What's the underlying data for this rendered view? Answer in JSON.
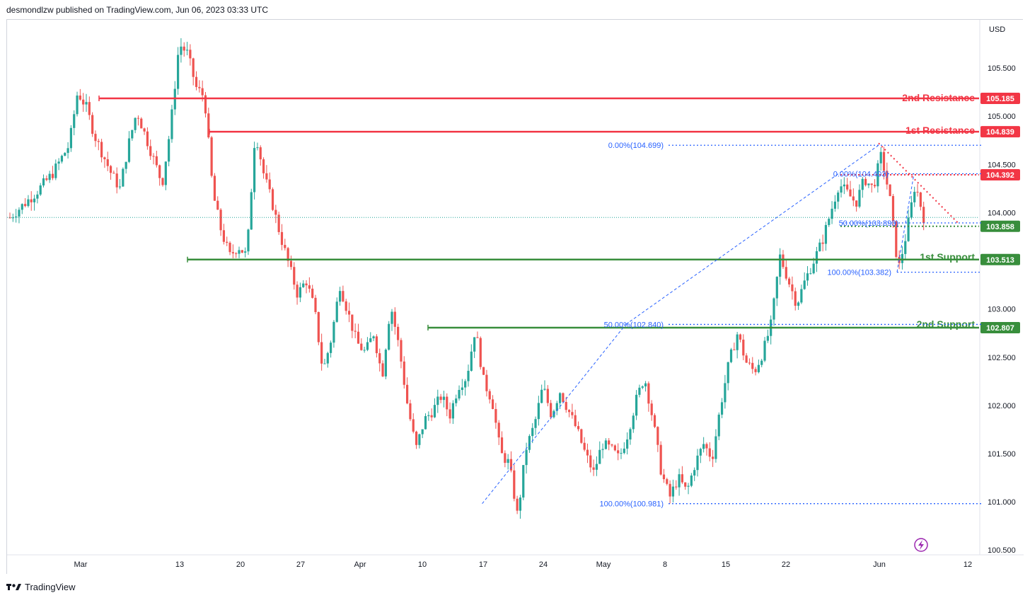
{
  "header": {
    "publisher_text": "desmondlzw published on TradingView.com, Jun 06, 2023 03:33 UTC"
  },
  "footer": {
    "brand": "TradingView"
  },
  "colors": {
    "up": "#26a69a",
    "down": "#ef5350",
    "resistance": "#f23645",
    "support": "#388e3c",
    "fib": "#2962ff",
    "price_line": "#26a69a"
  },
  "chart_data": {
    "type": "candlestick",
    "currency": "USD",
    "ylim": [
      100.45,
      106.0
    ],
    "y_ticks": [
      "100.500",
      "101.000",
      "101.500",
      "102.000",
      "102.500",
      "103.000",
      "103.500",
      "104.000",
      "104.500",
      "105.000",
      "105.500"
    ],
    "x_ticks": [
      "Mar",
      "13",
      "20",
      "27",
      "Apr",
      "10",
      "17",
      "24",
      "May",
      "8",
      "15",
      "22",
      "Jun",
      "12"
    ],
    "last_price": 103.95,
    "levels": [
      {
        "name": "2nd Resistance",
        "value": 105.185,
        "tag": "105.185",
        "kind": "resistance"
      },
      {
        "name": "1st Resistance",
        "value": 104.839,
        "tag": "104.839",
        "kind": "resistance"
      },
      {
        "name": "1st Support",
        "value": 103.513,
        "tag": "103.513",
        "kind": "support"
      },
      {
        "name": "2nd Support",
        "value": 102.807,
        "tag": "102.807",
        "kind": "support"
      }
    ],
    "marker_tags": [
      {
        "value": 104.392,
        "tag": "104.392",
        "kind": "resistance"
      },
      {
        "value": 103.858,
        "tag": "103.858",
        "kind": "support"
      }
    ],
    "fib_labels": [
      {
        "text": "0.00%(104.699)",
        "value": 104.699
      },
      {
        "text": "0.00%(104.403)",
        "value": 104.403
      },
      {
        "text": "50.00%(103.893)",
        "value": 103.893
      },
      {
        "text": "100.00%(103.382)",
        "value": 103.382
      },
      {
        "text": "50.00%(102.840)",
        "value": 102.84
      },
      {
        "text": "100.00%(100.981)",
        "value": 100.981
      }
    ],
    "path": [
      [
        0,
        103.95
      ],
      [
        3,
        104.2
      ],
      [
        5,
        104.4
      ],
      [
        7,
        104.7
      ],
      [
        8,
        105.25
      ],
      [
        9,
        105.1
      ],
      [
        10,
        104.8
      ],
      [
        11,
        104.6
      ],
      [
        12,
        104.4
      ],
      [
        13,
        104.25
      ],
      [
        14,
        104.7
      ],
      [
        15,
        105.05
      ],
      [
        16,
        104.8
      ],
      [
        17,
        104.55
      ],
      [
        18,
        104.3
      ],
      [
        19,
        104.9
      ],
      [
        20,
        105.75
      ],
      [
        21,
        105.65
      ],
      [
        22,
        105.3
      ],
      [
        23,
        105.2
      ],
      [
        24,
        104.2
      ],
      [
        25,
        103.8
      ],
      [
        26,
        103.55
      ],
      [
        27,
        103.65
      ],
      [
        28,
        103.55
      ],
      [
        29,
        104.85
      ],
      [
        30,
        104.4
      ],
      [
        31,
        104.1
      ],
      [
        32,
        103.75
      ],
      [
        33,
        103.45
      ],
      [
        34,
        103.15
      ],
      [
        35,
        103.3
      ],
      [
        36,
        103.0
      ],
      [
        37,
        102.35
      ],
      [
        38,
        102.7
      ],
      [
        39,
        103.25
      ],
      [
        40,
        102.95
      ],
      [
        41,
        102.65
      ],
      [
        42,
        102.55
      ],
      [
        43,
        102.75
      ],
      [
        44,
        102.3
      ],
      [
        45,
        103.05
      ],
      [
        46,
        102.6
      ],
      [
        47,
        102.0
      ],
      [
        48,
        101.55
      ],
      [
        49,
        101.85
      ],
      [
        50,
        101.95
      ],
      [
        51,
        102.1
      ],
      [
        52,
        101.9
      ],
      [
        53,
        102.2
      ],
      [
        54,
        102.3
      ],
      [
        55,
        102.8
      ],
      [
        56,
        102.25
      ],
      [
        57,
        102.05
      ],
      [
        58,
        101.5
      ],
      [
        59,
        101.4
      ],
      [
        60,
        100.85
      ],
      [
        61,
        101.55
      ],
      [
        62,
        101.8
      ],
      [
        63,
        102.2
      ],
      [
        64,
        101.9
      ],
      [
        65,
        102.15
      ],
      [
        66,
        101.95
      ],
      [
        67,
        101.75
      ],
      [
        68,
        101.5
      ],
      [
        69,
        101.3
      ],
      [
        70,
        101.6
      ],
      [
        71,
        101.55
      ],
      [
        72,
        101.45
      ],
      [
        73,
        101.7
      ],
      [
        74,
        102.05
      ],
      [
        75,
        102.3
      ],
      [
        76,
        101.85
      ],
      [
        77,
        101.3
      ],
      [
        78,
        101.05
      ],
      [
        79,
        101.25
      ],
      [
        80,
        101.1
      ],
      [
        81,
        101.4
      ],
      [
        82,
        101.6
      ],
      [
        83,
        101.45
      ],
      [
        84,
        102.0
      ],
      [
        85,
        102.45
      ],
      [
        86,
        102.75
      ],
      [
        87,
        102.45
      ],
      [
        88,
        102.35
      ],
      [
        89,
        102.55
      ],
      [
        90,
        102.85
      ],
      [
        91,
        103.55
      ],
      [
        92,
        103.3
      ],
      [
        93,
        103.05
      ],
      [
        94,
        103.3
      ],
      [
        95,
        103.5
      ],
      [
        96,
        103.7
      ],
      [
        97,
        104.0
      ],
      [
        98,
        104.3
      ],
      [
        99,
        104.2
      ],
      [
        100,
        104.1
      ],
      [
        101,
        104.35
      ],
      [
        102,
        104.25
      ],
      [
        103,
        104.6
      ],
      [
        104,
        104.15
      ],
      [
        105,
        103.4
      ],
      [
        106,
        103.8
      ],
      [
        107,
        104.3
      ],
      [
        108,
        103.95
      ]
    ]
  }
}
